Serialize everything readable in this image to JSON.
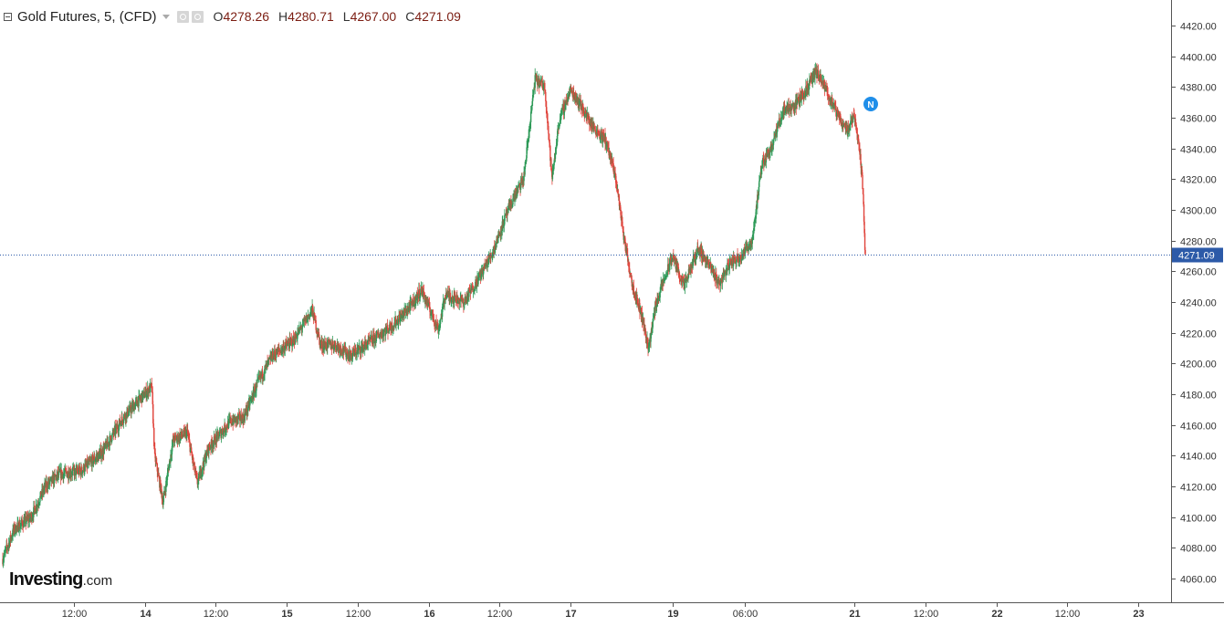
{
  "header": {
    "title": "Gold Futures, 5, (CFD)",
    "ohlc": [
      {
        "key": "O",
        "value": "4278.26"
      },
      {
        "key": "H",
        "value": "4280.71"
      },
      {
        "key": "L",
        "value": "4267.00"
      },
      {
        "key": "C",
        "value": "4271.09"
      }
    ]
  },
  "logo": {
    "name": "Investing",
    "suffix": ".com"
  },
  "news_marker": "N",
  "colors": {
    "up": "#2e9a58",
    "down": "#e0443c",
    "last_price": "#2c5aa8",
    "axis": "#444444",
    "accent": "#1f8ee9"
  },
  "chart_data": {
    "type": "candlestick",
    "title": "Gold Futures, 5, (CFD)",
    "ylim": [
      4050,
      4430
    ],
    "yticks": [
      4060,
      4080,
      4100,
      4120,
      4140,
      4160,
      4180,
      4200,
      4220,
      4240,
      4260,
      4280,
      4300,
      4320,
      4340,
      4360,
      4380,
      4400,
      4420
    ],
    "ytick_labels": [
      "4060.00",
      "4080.00",
      "4100.00",
      "4120.00",
      "4140.00",
      "4160.00",
      "4180.00",
      "4200.00",
      "4220.00",
      "4240.00",
      "4260.00",
      "4280.00",
      "4300.00",
      "4320.00",
      "4340.00",
      "4360.00",
      "4380.00",
      "4400.00",
      "4420.00"
    ],
    "x_ticks": [
      {
        "label": "12:00",
        "t": 0.5
      },
      {
        "label": "14",
        "t": 1.0
      },
      {
        "label": "12:00",
        "t": 1.5
      },
      {
        "label": "15",
        "t": 2.0
      },
      {
        "label": "12:00",
        "t": 2.5
      },
      {
        "label": "16",
        "t": 3.0
      },
      {
        "label": "12:00",
        "t": 3.5
      },
      {
        "label": "17",
        "t": 4.0
      },
      {
        "label": "19",
        "t": 4.72
      },
      {
        "label": "06:00",
        "t": 5.23
      },
      {
        "label": "21",
        "t": 6.0
      },
      {
        "label": "12:00",
        "t": 6.5
      },
      {
        "label": "22",
        "t": 7.0
      },
      {
        "label": "12:00",
        "t": 7.5
      },
      {
        "label": "23",
        "t": 8.0
      }
    ],
    "last_price": 4271.09,
    "last_price_label": "4271.09",
    "trend": [
      [
        -0.02,
        4068
      ],
      [
        0.08,
        4092
      ],
      [
        0.2,
        4100
      ],
      [
        0.3,
        4120
      ],
      [
        0.4,
        4128
      ],
      [
        0.55,
        4130
      ],
      [
        0.7,
        4142
      ],
      [
        0.85,
        4165
      ],
      [
        1.05,
        4185
      ],
      [
        1.07,
        4140
      ],
      [
        1.13,
        4110
      ],
      [
        1.2,
        4150
      ],
      [
        1.3,
        4155
      ],
      [
        1.37,
        4122
      ],
      [
        1.45,
        4145
      ],
      [
        1.6,
        4162
      ],
      [
        1.7,
        4165
      ],
      [
        1.8,
        4188
      ],
      [
        1.9,
        4205
      ],
      [
        2.05,
        4215
      ],
      [
        2.18,
        4235
      ],
      [
        2.24,
        4212
      ],
      [
        2.35,
        4212
      ],
      [
        2.45,
        4205
      ],
      [
        2.6,
        4215
      ],
      [
        2.75,
        4225
      ],
      [
        2.88,
        4238
      ],
      [
        2.95,
        4248
      ],
      [
        3.07,
        4222
      ],
      [
        3.12,
        4245
      ],
      [
        3.25,
        4240
      ],
      [
        3.35,
        4255
      ],
      [
        3.45,
        4272
      ],
      [
        3.52,
        4290
      ],
      [
        3.6,
        4308
      ],
      [
        3.67,
        4320
      ],
      [
        3.75,
        4385
      ],
      [
        3.82,
        4380
      ],
      [
        3.87,
        4320
      ],
      [
        3.92,
        4358
      ],
      [
        4.0,
        4378
      ],
      [
        4.05,
        4372
      ],
      [
        4.15,
        4355
      ],
      [
        4.25,
        4345
      ],
      [
        4.32,
        4320
      ],
      [
        4.38,
        4280
      ],
      [
        4.44,
        4250
      ],
      [
        4.5,
        4232
      ],
      [
        4.55,
        4210
      ],
      [
        4.6,
        4238
      ],
      [
        4.65,
        4252
      ],
      [
        4.72,
        4270
      ],
      [
        4.8,
        4250
      ],
      [
        4.9,
        4275
      ],
      [
        4.97,
        4265
      ],
      [
        5.05,
        4252
      ],
      [
        5.12,
        4265
      ],
      [
        5.2,
        4270
      ],
      [
        5.28,
        4280
      ],
      [
        5.35,
        4330
      ],
      [
        5.42,
        4342
      ],
      [
        5.5,
        4365
      ],
      [
        5.58,
        4368
      ],
      [
        5.66,
        4378
      ],
      [
        5.73,
        4390
      ],
      [
        5.8,
        4378
      ],
      [
        5.88,
        4362
      ],
      [
        5.95,
        4352
      ],
      [
        6.0,
        4362
      ],
      [
        6.03,
        4345
      ],
      [
        6.06,
        4315
      ],
      [
        6.08,
        4262
      ]
    ]
  }
}
